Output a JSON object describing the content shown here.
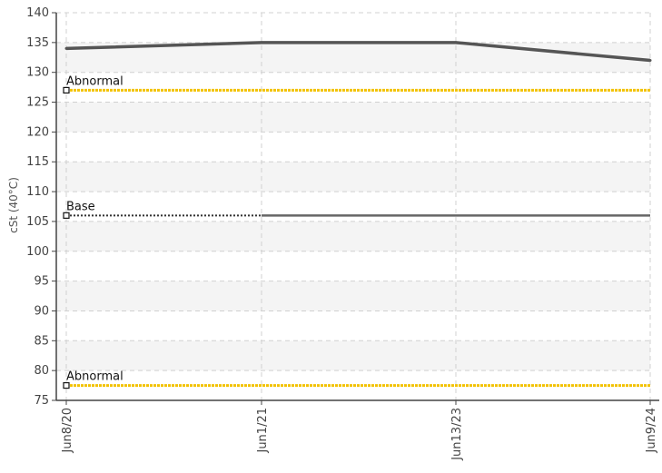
{
  "chart_data": {
    "type": "line",
    "title": "",
    "xlabel": "",
    "ylabel": "cSt (40°C)",
    "categories": [
      "Jun8/20",
      "Jun1/21",
      "Jun13/23",
      "Jun9/24"
    ],
    "ylim": [
      75,
      140
    ],
    "yticks": [
      75,
      80,
      85,
      90,
      95,
      100,
      105,
      110,
      115,
      120,
      125,
      130,
      135,
      140
    ],
    "grid": true,
    "series": [
      {
        "values": [
          134,
          135,
          135,
          132
        ],
        "color": "#555555"
      }
    ],
    "reference_lines": [
      {
        "label": "Abnormal",
        "value": 127,
        "color": "#f2c200",
        "style": "dotted"
      },
      {
        "label": "Base",
        "value": 106,
        "color": "#333333",
        "style": "dotted-then-solid"
      },
      {
        "label": "Abnormal",
        "value": 77.5,
        "color": "#f2c200",
        "style": "dotted"
      }
    ],
    "colors": {
      "band": "#f4f4f4",
      "grid": "#d0d0d0",
      "axis": "#444444"
    }
  }
}
